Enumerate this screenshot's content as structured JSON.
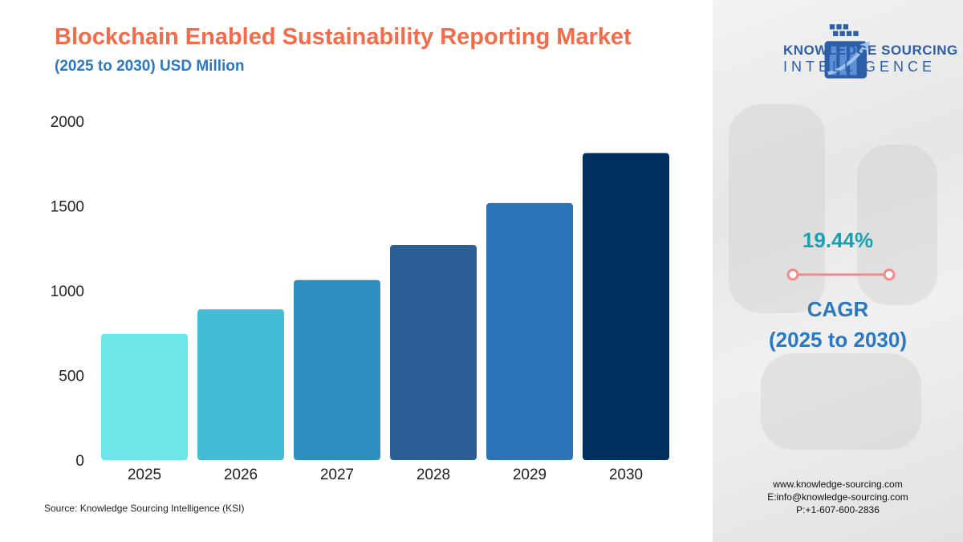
{
  "chart_data": {
    "type": "bar",
    "title": "Blockchain Enabled Sustainability Reporting Market",
    "subtitle": "(2025 to 2030) USD Million",
    "categories": [
      "2025",
      "2026",
      "2027",
      "2028",
      "2029",
      "2030"
    ],
    "values": [
      745,
      890,
      1063,
      1270,
      1517,
      1812
    ],
    "ylim": [
      0,
      2000
    ],
    "yticks": [
      0,
      500,
      1000,
      1500,
      2000
    ],
    "grid": false,
    "legend": "none",
    "bar_colors": [
      "#6ce6e8",
      "#44bcd6",
      "#2d8fbf",
      "#2c5f96",
      "#2c72b8",
      "#00305f"
    ]
  },
  "source": "Source: Knowledge Sourcing Intelligence (KSI)",
  "brand": {
    "line1": "KNOWLEDGE SOURCING",
    "line2": "INTELLIGENCE",
    "logo_icon": "building-arrow-logo-icon",
    "color": "#2c5fa8"
  },
  "cagr": {
    "value": "19.44%",
    "label_line1": "CAGR",
    "label_line2": "(2025 to 2030)",
    "value_color": "#1a9fb0",
    "line_color": "#f08a8a"
  },
  "contact": {
    "website": "www.knowledge-sourcing.com",
    "email": "E:info@knowledge-sourcing.com",
    "phone": "P:+1-607-600-2836"
  },
  "colors": {
    "title": "#f26b4a",
    "subtitle": "#2a78c2"
  }
}
